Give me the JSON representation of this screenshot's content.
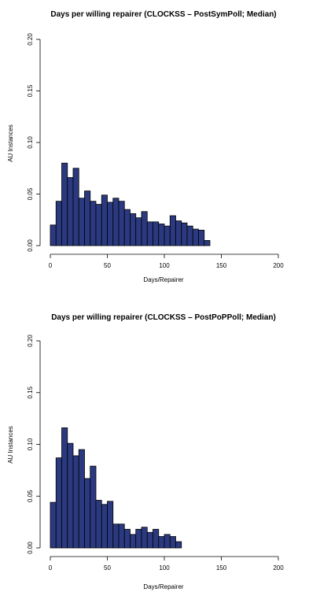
{
  "chart_data": [
    {
      "type": "bar",
      "title": "Days per willing repairer (CLOCKSS – PostSymPoll; Median)",
      "xlabel": "Days/Repairer",
      "ylabel": "AU Instances",
      "xlim": [
        0,
        200
      ],
      "ylim": [
        0,
        0.2
      ],
      "xticks": [
        "0",
        "50",
        "100",
        "150",
        "200"
      ],
      "yticks": [
        "0.00",
        "0.05",
        "0.10",
        "0.15",
        "0.20"
      ],
      "bin_width": 5,
      "x": [
        0,
        5,
        10,
        15,
        20,
        25,
        30,
        35,
        40,
        45,
        50,
        55,
        60,
        65,
        70,
        75,
        80,
        85,
        90,
        95,
        100,
        105,
        110,
        115,
        120,
        125,
        130,
        135
      ],
      "values": [
        0.02,
        0.043,
        0.08,
        0.066,
        0.075,
        0.046,
        0.053,
        0.043,
        0.04,
        0.049,
        0.042,
        0.046,
        0.043,
        0.035,
        0.031,
        0.027,
        0.033,
        0.023,
        0.023,
        0.021,
        0.019,
        0.029,
        0.024,
        0.022,
        0.019,
        0.016,
        0.015,
        0.005
      ]
    },
    {
      "type": "bar",
      "title": "Days per willing repairer (CLOCKSS – PostPoPPoll; Median)",
      "xlabel": "Days/Repairer",
      "ylabel": "AU Instances",
      "xlim": [
        0,
        200
      ],
      "ylim": [
        0,
        0.2
      ],
      "xticks": [
        "0",
        "50",
        "100",
        "150",
        "200"
      ],
      "yticks": [
        "0.00",
        "0.05",
        "0.10",
        "0.15",
        "0.20"
      ],
      "bin_width": 5,
      "x": [
        0,
        5,
        10,
        15,
        20,
        25,
        30,
        35,
        40,
        45,
        50,
        55,
        60,
        65,
        70,
        75,
        80,
        85,
        90,
        95,
        100,
        105,
        110
      ],
      "values": [
        0.044,
        0.087,
        0.116,
        0.101,
        0.089,
        0.095,
        0.067,
        0.079,
        0.046,
        0.042,
        0.045,
        0.023,
        0.023,
        0.018,
        0.013,
        0.018,
        0.02,
        0.015,
        0.018,
        0.011,
        0.013,
        0.011,
        0.006
      ]
    }
  ]
}
